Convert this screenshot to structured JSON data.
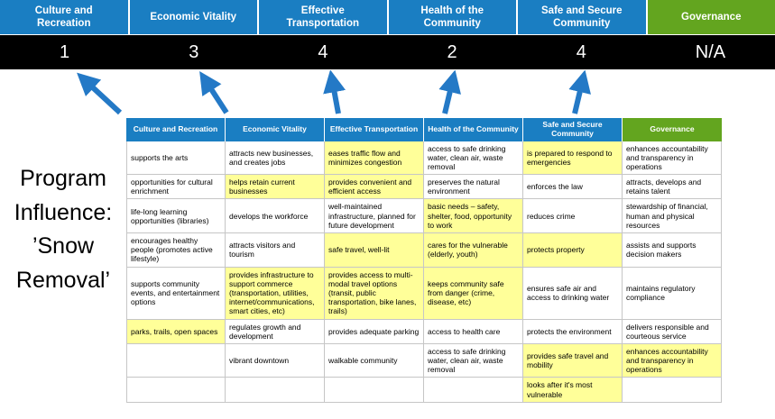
{
  "slide": {
    "title": "Program\nInfluence:\n’Snow\nRemoval’"
  },
  "colors": {
    "blue": "#1a7ec2",
    "green": "#63a51f",
    "score_bg": "#000000",
    "highlight": "#ffff99",
    "border": "#c6c6c6",
    "arrow": "#2479c6"
  },
  "scoreboard": [
    {
      "label": "Culture and Recreation",
      "score": "1",
      "theme": "blue"
    },
    {
      "label": "Economic Vitality",
      "score": "3",
      "theme": "blue"
    },
    {
      "label": "Effective Transportation",
      "score": "4",
      "theme": "blue"
    },
    {
      "label": "Health of the Community",
      "score": "2",
      "theme": "blue"
    },
    {
      "label": "Safe and Secure Community",
      "score": "4",
      "theme": "blue"
    },
    {
      "label": "Governance",
      "score": "N/A",
      "theme": "green"
    }
  ],
  "table": {
    "headers": [
      "Culture and Recreation",
      "Economic Vitality",
      "Effective Transportation",
      "Health of the Community",
      "Safe and Secure Community",
      "Governance"
    ],
    "rows": [
      [
        {
          "text": "supports the arts",
          "hl": false
        },
        {
          "text": "attracts new businesses, and creates jobs",
          "hl": false
        },
        {
          "text": "eases traffic flow and minimizes congestion",
          "hl": true
        },
        {
          "text": "access to safe drinking water, clean air, waste removal",
          "hl": false
        },
        {
          "text": "is prepared to respond to emergencies",
          "hl": true
        },
        {
          "text": "enhances accountability and transparency in operations",
          "hl": false
        }
      ],
      [
        {
          "text": "opportunities for cultural enrichment",
          "hl": false
        },
        {
          "text": "helps retain current businesses",
          "hl": true
        },
        {
          "text": "provides convenient and efficient access",
          "hl": true
        },
        {
          "text": "preserves the natural environment",
          "hl": false
        },
        {
          "text": "enforces the law",
          "hl": false
        },
        {
          "text": "attracts, develops and retains talent",
          "hl": false
        }
      ],
      [
        {
          "text": "life-long learning opportunities (libraries)",
          "hl": false
        },
        {
          "text": "develops the workforce",
          "hl": false
        },
        {
          "text": "well-maintained infrastructure, planned for future development",
          "hl": false
        },
        {
          "text": "basic needs – safety, shelter, food, opportunity to work",
          "hl": true
        },
        {
          "text": "reduces crime",
          "hl": false
        },
        {
          "text": "stewardship of financial, human and physical resources",
          "hl": false
        }
      ],
      [
        {
          "text": "encourages healthy people (promotes active lifestyle)",
          "hl": false
        },
        {
          "text": "attracts visitors and tourism",
          "hl": false
        },
        {
          "text": "safe travel, well-lit",
          "hl": true
        },
        {
          "text": "cares for the vulnerable (elderly, youth)",
          "hl": true
        },
        {
          "text": "protects property",
          "hl": true
        },
        {
          "text": "assists and supports decision makers",
          "hl": false
        }
      ],
      [
        {
          "text": "supports community events, and entertainment options",
          "hl": false
        },
        {
          "text": "provides infrastructure to support commerce (transportation, utilities, internet/communications, smart cities, etc)",
          "hl": true
        },
        {
          "text": "provides access to multi-modal travel options (transit, public transportation, bike lanes, trails)",
          "hl": true
        },
        {
          "text": "keeps community safe from danger (crime, disease, etc)",
          "hl": true
        },
        {
          "text": "ensures safe air and access to drinking water",
          "hl": false
        },
        {
          "text": "maintains regulatory compliance",
          "hl": false
        }
      ],
      [
        {
          "text": "parks, trails, open spaces",
          "hl": true
        },
        {
          "text": "regulates growth and development",
          "hl": false
        },
        {
          "text": "provides adequate parking",
          "hl": false
        },
        {
          "text": "access to health care",
          "hl": false
        },
        {
          "text": "protects the environment",
          "hl": false
        },
        {
          "text": "delivers responsible and courteous service",
          "hl": false
        }
      ],
      [
        {
          "text": "",
          "hl": false
        },
        {
          "text": "vibrant downtown",
          "hl": false
        },
        {
          "text": "walkable community",
          "hl": false
        },
        {
          "text": "access to safe drinking water, clean air, waste removal",
          "hl": false
        },
        {
          "text": "provides safe travel and mobility",
          "hl": true
        },
        {
          "text": "enhances accountability and transparency in operations",
          "hl": true
        }
      ],
      [
        {
          "text": "",
          "hl": false
        },
        {
          "text": "",
          "hl": false
        },
        {
          "text": "",
          "hl": false
        },
        {
          "text": "",
          "hl": false
        },
        {
          "text": "looks after it's most vulnerable",
          "hl": true
        },
        {
          "text": "",
          "hl": false
        }
      ]
    ]
  }
}
